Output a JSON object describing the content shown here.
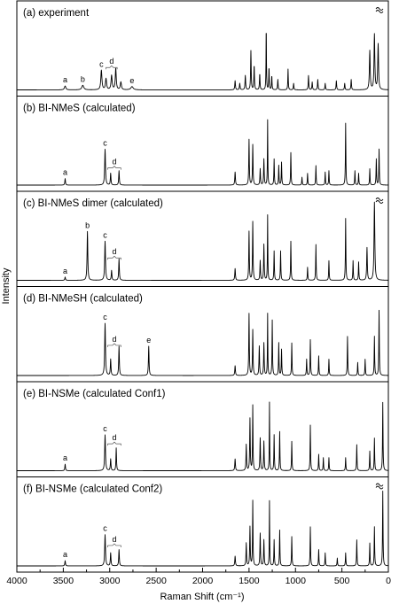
{
  "chart_data": {
    "type": "line",
    "xlabel": "Raman Shift (cm⁻¹)",
    "ylabel": "Intensity",
    "xlim": [
      4000,
      0
    ],
    "xticks": [
      4000,
      3500,
      3000,
      2500,
      2000,
      1500,
      1000,
      500,
      0
    ],
    "panels": [
      {
        "title": "(a) experiment",
        "break_mark": true,
        "peaks": [
          {
            "x": 3480,
            "h": 0.06,
            "w": 18
          },
          {
            "x": 3290,
            "h": 0.07,
            "w": 25
          },
          {
            "x": 3090,
            "h": 0.3,
            "w": 14
          },
          {
            "x": 3040,
            "h": 0.17,
            "w": 14
          },
          {
            "x": 2980,
            "h": 0.22,
            "w": 14
          },
          {
            "x": 2935,
            "h": 0.33,
            "w": 12
          },
          {
            "x": 2880,
            "h": 0.12,
            "w": 14
          },
          {
            "x": 2760,
            "h": 0.05,
            "w": 30
          },
          {
            "x": 1650,
            "h": 0.14,
            "w": 8
          },
          {
            "x": 1600,
            "h": 0.1,
            "w": 8
          },
          {
            "x": 1540,
            "h": 0.22,
            "w": 8
          },
          {
            "x": 1480,
            "h": 0.6,
            "w": 7
          },
          {
            "x": 1445,
            "h": 0.38,
            "w": 7
          },
          {
            "x": 1385,
            "h": 0.25,
            "w": 7
          },
          {
            "x": 1315,
            "h": 1.0,
            "w": 5
          },
          {
            "x": 1285,
            "h": 0.35,
            "w": 6
          },
          {
            "x": 1255,
            "h": 0.22,
            "w": 6
          },
          {
            "x": 1190,
            "h": 0.16,
            "w": 7
          },
          {
            "x": 1080,
            "h": 0.32,
            "w": 6
          },
          {
            "x": 1020,
            "h": 0.1,
            "w": 7
          },
          {
            "x": 860,
            "h": 0.22,
            "w": 7
          },
          {
            "x": 820,
            "h": 0.12,
            "w": 7
          },
          {
            "x": 760,
            "h": 0.16,
            "w": 7
          },
          {
            "x": 680,
            "h": 0.1,
            "w": 7
          },
          {
            "x": 560,
            "h": 0.14,
            "w": 7
          },
          {
            "x": 470,
            "h": 0.1,
            "w": 7
          },
          {
            "x": 400,
            "h": 0.16,
            "w": 7
          },
          {
            "x": 200,
            "h": 0.6,
            "w": 10
          },
          {
            "x": 150,
            "h": 0.85,
            "w": 10
          },
          {
            "x": 110,
            "h": 0.7,
            "w": 10
          }
        ],
        "peak_labels": [
          {
            "text": "a",
            "x": 3480,
            "h": 0.06
          },
          {
            "text": "b",
            "x": 3290,
            "h": 0.07
          },
          {
            "text": "c",
            "x": 3090,
            "h": 0.3
          },
          {
            "text": "d",
            "x": 2980,
            "h": 0.33,
            "brace": [
              3040,
              2920
            ]
          },
          {
            "text": "e",
            "x": 2760,
            "h": 0.05
          }
        ]
      },
      {
        "title": "(b) BI-NMeS (calculated)",
        "peaks": [
          {
            "x": 3480,
            "h": 0.1,
            "w": 8
          },
          {
            "x": 3050,
            "h": 0.55,
            "w": 10
          },
          {
            "x": 2990,
            "h": 0.18,
            "w": 8
          },
          {
            "x": 2900,
            "h": 0.22,
            "w": 8
          },
          {
            "x": 1650,
            "h": 0.2,
            "w": 8
          },
          {
            "x": 1500,
            "h": 0.7,
            "w": 7
          },
          {
            "x": 1460,
            "h": 0.62,
            "w": 7
          },
          {
            "x": 1380,
            "h": 0.25,
            "w": 7
          },
          {
            "x": 1340,
            "h": 0.4,
            "w": 7
          },
          {
            "x": 1300,
            "h": 1.0,
            "w": 5
          },
          {
            "x": 1230,
            "h": 0.4,
            "w": 6
          },
          {
            "x": 1180,
            "h": 0.3,
            "w": 6
          },
          {
            "x": 1150,
            "h": 0.35,
            "w": 6
          },
          {
            "x": 1050,
            "h": 0.5,
            "w": 6
          },
          {
            "x": 930,
            "h": 0.12,
            "w": 6
          },
          {
            "x": 870,
            "h": 0.18,
            "w": 6
          },
          {
            "x": 780,
            "h": 0.3,
            "w": 6
          },
          {
            "x": 680,
            "h": 0.2,
            "w": 6
          },
          {
            "x": 640,
            "h": 0.22,
            "w": 6
          },
          {
            "x": 460,
            "h": 0.95,
            "w": 6
          },
          {
            "x": 360,
            "h": 0.22,
            "w": 6
          },
          {
            "x": 320,
            "h": 0.18,
            "w": 6
          },
          {
            "x": 200,
            "h": 0.25,
            "w": 6
          },
          {
            "x": 130,
            "h": 0.4,
            "w": 6
          },
          {
            "x": 100,
            "h": 0.55,
            "w": 6
          }
        ],
        "peak_labels": [
          {
            "text": "a",
            "x": 3480,
            "h": 0.1
          },
          {
            "text": "c",
            "x": 3050,
            "h": 0.55
          },
          {
            "text": "d",
            "x": 2950,
            "h": 0.25,
            "brace": [
              3020,
              2880
            ]
          }
        ]
      },
      {
        "title": "(c) BI-NMeS dimer (calculated)",
        "break_mark": true,
        "peaks": [
          {
            "x": 3480,
            "h": 0.05,
            "w": 8
          },
          {
            "x": 3240,
            "h": 0.75,
            "w": 9
          },
          {
            "x": 3050,
            "h": 0.6,
            "w": 10
          },
          {
            "x": 2980,
            "h": 0.15,
            "w": 8
          },
          {
            "x": 2900,
            "h": 0.33,
            "w": 8
          },
          {
            "x": 1650,
            "h": 0.18,
            "w": 8
          },
          {
            "x": 1500,
            "h": 0.75,
            "w": 7
          },
          {
            "x": 1460,
            "h": 0.9,
            "w": 7
          },
          {
            "x": 1380,
            "h": 0.3,
            "w": 7
          },
          {
            "x": 1340,
            "h": 0.55,
            "w": 7
          },
          {
            "x": 1300,
            "h": 1.0,
            "w": 5
          },
          {
            "x": 1230,
            "h": 0.45,
            "w": 6
          },
          {
            "x": 1160,
            "h": 0.45,
            "w": 6
          },
          {
            "x": 1050,
            "h": 0.6,
            "w": 6
          },
          {
            "x": 870,
            "h": 0.2,
            "w": 6
          },
          {
            "x": 780,
            "h": 0.55,
            "w": 6
          },
          {
            "x": 640,
            "h": 0.3,
            "w": 6
          },
          {
            "x": 460,
            "h": 0.95,
            "w": 6
          },
          {
            "x": 380,
            "h": 0.3,
            "w": 6
          },
          {
            "x": 320,
            "h": 0.28,
            "w": 6
          },
          {
            "x": 230,
            "h": 0.5,
            "w": 8
          },
          {
            "x": 150,
            "h": 1.2,
            "w": 10
          }
        ],
        "peak_labels": [
          {
            "text": "a",
            "x": 3480,
            "h": 0.05
          },
          {
            "text": "b",
            "x": 3240,
            "h": 0.75
          },
          {
            "text": "c",
            "x": 3050,
            "h": 0.6
          },
          {
            "text": "d",
            "x": 2950,
            "h": 0.33,
            "brace": [
              3020,
              2880
            ]
          }
        ]
      },
      {
        "title": "(d) BI-NMeSH (calculated)",
        "peaks": [
          {
            "x": 3050,
            "h": 0.8,
            "w": 10
          },
          {
            "x": 2990,
            "h": 0.25,
            "w": 8
          },
          {
            "x": 2900,
            "h": 0.45,
            "w": 8
          },
          {
            "x": 2580,
            "h": 0.45,
            "w": 8
          },
          {
            "x": 1650,
            "h": 0.15,
            "w": 8
          },
          {
            "x": 1500,
            "h": 0.95,
            "w": 7
          },
          {
            "x": 1460,
            "h": 0.7,
            "w": 7
          },
          {
            "x": 1390,
            "h": 0.45,
            "w": 7
          },
          {
            "x": 1340,
            "h": 0.5,
            "w": 7
          },
          {
            "x": 1300,
            "h": 0.95,
            "w": 5
          },
          {
            "x": 1250,
            "h": 0.85,
            "w": 6
          },
          {
            "x": 1180,
            "h": 0.5,
            "w": 6
          },
          {
            "x": 1150,
            "h": 0.4,
            "w": 6
          },
          {
            "x": 1040,
            "h": 0.5,
            "w": 6
          },
          {
            "x": 880,
            "h": 0.25,
            "w": 6
          },
          {
            "x": 840,
            "h": 0.55,
            "w": 6
          },
          {
            "x": 750,
            "h": 0.3,
            "w": 6
          },
          {
            "x": 640,
            "h": 0.25,
            "w": 6
          },
          {
            "x": 440,
            "h": 0.6,
            "w": 6
          },
          {
            "x": 330,
            "h": 0.2,
            "w": 6
          },
          {
            "x": 250,
            "h": 0.25,
            "w": 6
          },
          {
            "x": 150,
            "h": 0.6,
            "w": 6
          },
          {
            "x": 100,
            "h": 1.0,
            "w": 6
          }
        ],
        "peak_labels": [
          {
            "text": "c",
            "x": 3050,
            "h": 0.8
          },
          {
            "text": "d",
            "x": 2950,
            "h": 0.45,
            "brace": [
              3020,
              2880
            ]
          },
          {
            "text": "e",
            "x": 2580,
            "h": 0.45
          }
        ]
      },
      {
        "title": "(e) BI-NSMe (calculated Conf1)",
        "peaks": [
          {
            "x": 3480,
            "h": 0.1,
            "w": 8
          },
          {
            "x": 3050,
            "h": 0.55,
            "w": 10
          },
          {
            "x": 2990,
            "h": 0.18,
            "w": 8
          },
          {
            "x": 2930,
            "h": 0.35,
            "w": 7
          },
          {
            "x": 1650,
            "h": 0.18,
            "w": 8
          },
          {
            "x": 1530,
            "h": 0.4,
            "w": 7
          },
          {
            "x": 1490,
            "h": 0.8,
            "w": 7
          },
          {
            "x": 1460,
            "h": 1.0,
            "w": 6
          },
          {
            "x": 1380,
            "h": 0.5,
            "w": 7
          },
          {
            "x": 1340,
            "h": 0.45,
            "w": 7
          },
          {
            "x": 1280,
            "h": 1.05,
            "w": 5
          },
          {
            "x": 1230,
            "h": 0.55,
            "w": 6
          },
          {
            "x": 1170,
            "h": 0.6,
            "w": 6
          },
          {
            "x": 1040,
            "h": 0.45,
            "w": 6
          },
          {
            "x": 840,
            "h": 0.7,
            "w": 6
          },
          {
            "x": 750,
            "h": 0.25,
            "w": 6
          },
          {
            "x": 700,
            "h": 0.2,
            "w": 6
          },
          {
            "x": 640,
            "h": 0.2,
            "w": 6
          },
          {
            "x": 460,
            "h": 0.2,
            "w": 6
          },
          {
            "x": 340,
            "h": 0.4,
            "w": 6
          },
          {
            "x": 200,
            "h": 0.3,
            "w": 6
          },
          {
            "x": 150,
            "h": 0.5,
            "w": 6
          },
          {
            "x": 60,
            "h": 1.05,
            "w": 6
          }
        ],
        "peak_labels": [
          {
            "text": "a",
            "x": 3480,
            "h": 0.1
          },
          {
            "text": "c",
            "x": 3050,
            "h": 0.55
          },
          {
            "text": "d",
            "x": 2950,
            "h": 0.4,
            "brace": [
              3020,
              2880
            ]
          }
        ]
      },
      {
        "title": "(f) BI-NSMe (calculated Conf2)",
        "break_mark": true,
        "peaks": [
          {
            "x": 3480,
            "h": 0.08,
            "w": 8
          },
          {
            "x": 3050,
            "h": 0.48,
            "w": 10
          },
          {
            "x": 2990,
            "h": 0.2,
            "w": 8
          },
          {
            "x": 2900,
            "h": 0.25,
            "w": 8
          },
          {
            "x": 1650,
            "h": 0.15,
            "w": 8
          },
          {
            "x": 1530,
            "h": 0.35,
            "w": 7
          },
          {
            "x": 1490,
            "h": 0.6,
            "w": 7
          },
          {
            "x": 1460,
            "h": 1.0,
            "w": 6
          },
          {
            "x": 1380,
            "h": 0.5,
            "w": 7
          },
          {
            "x": 1340,
            "h": 0.4,
            "w": 7
          },
          {
            "x": 1280,
            "h": 1.0,
            "w": 5
          },
          {
            "x": 1230,
            "h": 0.4,
            "w": 6
          },
          {
            "x": 1170,
            "h": 0.55,
            "w": 6
          },
          {
            "x": 1040,
            "h": 0.45,
            "w": 6
          },
          {
            "x": 840,
            "h": 0.6,
            "w": 6
          },
          {
            "x": 750,
            "h": 0.25,
            "w": 6
          },
          {
            "x": 680,
            "h": 0.2,
            "w": 6
          },
          {
            "x": 550,
            "h": 0.12,
            "w": 6
          },
          {
            "x": 460,
            "h": 0.2,
            "w": 6
          },
          {
            "x": 340,
            "h": 0.4,
            "w": 6
          },
          {
            "x": 200,
            "h": 0.35,
            "w": 6
          },
          {
            "x": 150,
            "h": 0.6,
            "w": 6
          },
          {
            "x": 60,
            "h": 1.15,
            "w": 6
          }
        ],
        "peak_labels": [
          {
            "text": "a",
            "x": 3480,
            "h": 0.08
          },
          {
            "text": "c",
            "x": 3050,
            "h": 0.48
          },
          {
            "text": "d",
            "x": 2950,
            "h": 0.3,
            "brace": [
              3020,
              2880
            ]
          }
        ]
      }
    ]
  }
}
